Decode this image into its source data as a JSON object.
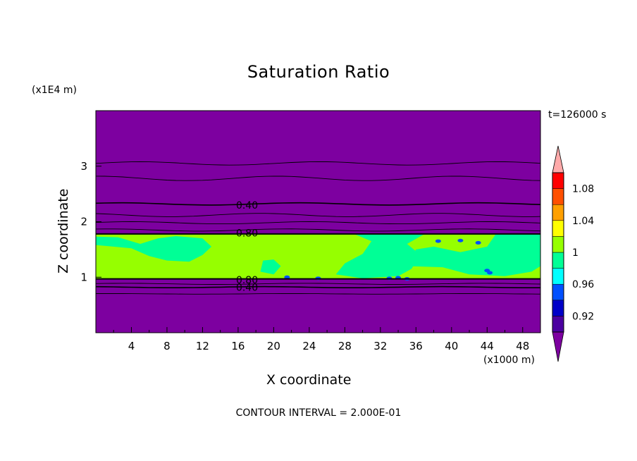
{
  "chart_data": {
    "type": "heatmap",
    "title": "Saturation Ratio",
    "xlabel": "X coordinate",
    "ylabel": "Z coordinate",
    "x_unit": "(x1000 m)",
    "y_unit": "(x1E4 m)",
    "time_label": "t=126000 s",
    "footer": "CONTOUR INTERVAL = 2.000E-01",
    "xlim": [
      0,
      50
    ],
    "ylim": [
      0,
      4
    ],
    "x_ticks": [
      4,
      8,
      12,
      16,
      20,
      24,
      28,
      32,
      36,
      40,
      44,
      48
    ],
    "y_ticks": [
      1,
      2,
      3
    ],
    "background_level": "< 0.92 (purple)",
    "contour_labels": [
      {
        "text": "0.40",
        "x": 17,
        "z": 2.3
      },
      {
        "text": "0.80",
        "x": 17,
        "z": 1.8
      },
      {
        "text": "0.80",
        "x": 17,
        "z": 0.95
      },
      {
        "text": "0.40",
        "x": 17,
        "z": 0.82
      }
    ],
    "saturated_layer": {
      "z_bottom": 0.97,
      "z_top": 1.78,
      "value_range": "0.96 - 1.00+"
    },
    "colorbar": {
      "labels": [
        "1.08",
        "1.04",
        "1",
        "0.96",
        "0.92"
      ],
      "bands": [
        {
          "from": 0.9,
          "to": 0.92,
          "color": "#4b00a0"
        },
        {
          "from": 0.92,
          "to": 0.94,
          "color": "#0000c8"
        },
        {
          "from": 0.94,
          "to": 0.96,
          "color": "#0050ff"
        },
        {
          "from": 0.96,
          "to": 0.98,
          "color": "#00ffff"
        },
        {
          "from": 0.98,
          "to": 1.0,
          "color": "#00ff96"
        },
        {
          "from": 1.0,
          "to": 1.02,
          "color": "#96ff00"
        },
        {
          "from": 1.02,
          "to": 1.04,
          "color": "#ffff00"
        },
        {
          "from": 1.04,
          "to": 1.06,
          "color": "#ffa000"
        },
        {
          "from": 1.06,
          "to": 1.08,
          "color": "#ff5000"
        },
        {
          "from": 1.08,
          "to": 1.1,
          "color": "#ff0000"
        }
      ],
      "under_color": "#7d00a0",
      "over_color": "#ffaaaa"
    },
    "colors": {
      "background": "#7d00a0",
      "layer_main": "#96ff00",
      "layer_secondary": "#00ff96",
      "specks": "#0050ff"
    }
  }
}
